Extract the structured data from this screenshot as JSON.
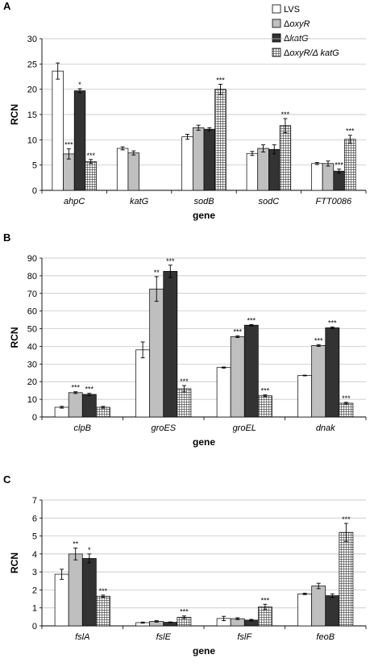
{
  "legend": [
    {
      "prefix": "",
      "italic": "LVS",
      "style": "white"
    },
    {
      "prefix": "Δ",
      "italic": "oxyR",
      "style": "gray"
    },
    {
      "prefix": "Δ",
      "italic": "katG",
      "style": "black"
    },
    {
      "prefix": "Δ",
      "italic": "oxyR/Δ katG",
      "style": "hatch"
    }
  ],
  "chart_data": [
    {
      "type": "bar",
      "panel_label": "A",
      "ylabel": "RCN",
      "xlabel": "gene",
      "ylim": [
        0,
        30
      ],
      "yticks": [
        0,
        5,
        10,
        15,
        20,
        25,
        30
      ],
      "categories": [
        "ahpC",
        "katG",
        "sodB",
        "sodC",
        "FTT0086"
      ],
      "series": [
        {
          "name": "LVS",
          "style": "white",
          "values": [
            23.6,
            8.3,
            10.6,
            7.3,
            5.3
          ],
          "errors": [
            1.6,
            0.3,
            0.5,
            0.4,
            0.2
          ],
          "sig": [
            "",
            "",
            "",
            "",
            ""
          ]
        },
        {
          "name": "ΔoxyR",
          "style": "gray",
          "values": [
            7.2,
            7.4,
            12.4,
            8.3,
            5.3
          ],
          "errors": [
            1.0,
            0.4,
            0.5,
            0.7,
            0.5
          ],
          "sig": [
            "***",
            "",
            "",
            "",
            ""
          ]
        },
        {
          "name": "ΔkatG",
          "style": "black",
          "values": [
            19.7,
            null,
            12.1,
            8.1,
            3.8
          ],
          "errors": [
            0.4,
            null,
            0.3,
            0.9,
            0.4
          ],
          "sig": [
            "*",
            "",
            "",
            "",
            "***"
          ]
        },
        {
          "name": "ΔoxyR/ΔkatG",
          "style": "hatch",
          "values": [
            5.7,
            null,
            20.0,
            12.8,
            10.1
          ],
          "errors": [
            0.4,
            null,
            1.0,
            1.4,
            0.8
          ],
          "sig": [
            "***",
            "",
            "***",
            "***",
            "***"
          ]
        }
      ]
    },
    {
      "type": "bar",
      "panel_label": "B",
      "ylabel": "RCN",
      "xlabel": "gene",
      "ylim": [
        0,
        90
      ],
      "yticks": [
        0,
        10,
        20,
        30,
        40,
        50,
        60,
        70,
        80,
        90
      ],
      "categories": [
        "clpB",
        "groES",
        "groEL",
        "dnak"
      ],
      "series": [
        {
          "name": "LVS",
          "style": "white",
          "values": [
            5.5,
            38.0,
            28.0,
            23.5
          ],
          "errors": [
            0.5,
            4.5,
            0.3,
            0.2
          ],
          "sig": [
            "",
            "",
            "",
            ""
          ]
        },
        {
          "name": "ΔoxyR",
          "style": "gray",
          "values": [
            13.8,
            72.5,
            45.5,
            40.5
          ],
          "errors": [
            0.5,
            7.0,
            0.5,
            0.5
          ],
          "sig": [
            "***",
            "**",
            "***",
            "***"
          ]
        },
        {
          "name": "ΔkatG",
          "style": "black",
          "values": [
            12.8,
            82.5,
            52.0,
            50.5
          ],
          "errors": [
            0.6,
            3.5,
            0.4,
            0.5
          ],
          "sig": [
            "***",
            "***",
            "***",
            "***"
          ]
        },
        {
          "name": "ΔoxyR/ΔkatG",
          "style": "hatch",
          "values": [
            5.5,
            16.0,
            12.0,
            7.8
          ],
          "errors": [
            0.5,
            1.8,
            0.5,
            0.5
          ],
          "sig": [
            "",
            "***",
            "***",
            "***"
          ]
        }
      ]
    },
    {
      "type": "bar",
      "panel_label": "C",
      "ylabel": "RCN",
      "xlabel": "gene",
      "ylim": [
        0,
        7
      ],
      "yticks": [
        0,
        1,
        2,
        3,
        4,
        5,
        6,
        7
      ],
      "categories": [
        "fslA",
        "fslE",
        "fslF",
        "feoB"
      ],
      "series": [
        {
          "name": "LVS",
          "style": "white",
          "values": [
            2.87,
            0.18,
            0.41,
            1.78
          ],
          "errors": [
            0.28,
            0.03,
            0.12,
            0.04
          ],
          "sig": [
            "",
            "",
            "",
            ""
          ]
        },
        {
          "name": "ΔoxyR",
          "style": "gray",
          "values": [
            4.0,
            0.25,
            0.4,
            2.22
          ],
          "errors": [
            0.33,
            0.04,
            0.05,
            0.15
          ],
          "sig": [
            "**",
            "",
            "",
            ""
          ]
        },
        {
          "name": "ΔkatG",
          "style": "black",
          "values": [
            3.75,
            0.2,
            0.32,
            1.68
          ],
          "errors": [
            0.25,
            0.02,
            0.04,
            0.1
          ],
          "sig": [
            "*",
            "",
            "",
            ""
          ]
        },
        {
          "name": "ΔoxyR/ΔkatG",
          "style": "hatch",
          "values": [
            1.65,
            0.48,
            1.05,
            5.2
          ],
          "errors": [
            0.06,
            0.07,
            0.15,
            0.5
          ],
          "sig": [
            "***",
            "***",
            "***",
            "***"
          ]
        }
      ]
    }
  ]
}
